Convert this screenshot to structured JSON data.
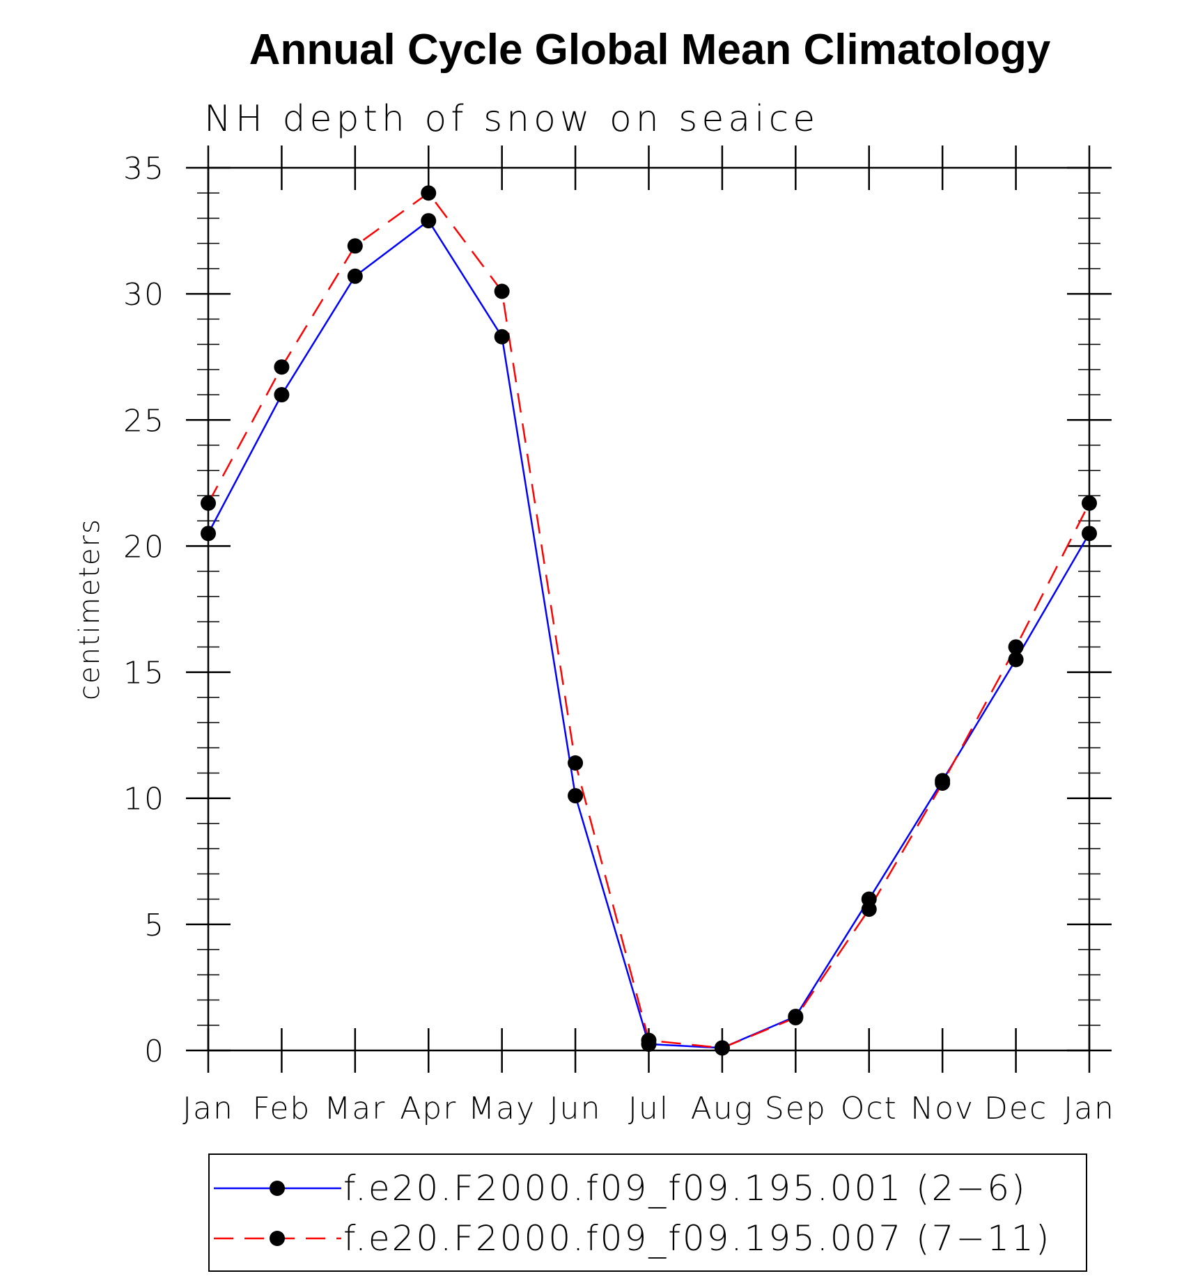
{
  "chart_data": {
    "type": "line",
    "title": "Annual Cycle Global Mean Climatology",
    "subtitle": "NH depth of snow on seaice",
    "xlabel": "",
    "ylabel": "centimeters",
    "categories": [
      "Jan",
      "Feb",
      "Mar",
      "Apr",
      "May",
      "Jun",
      "Jul",
      "Aug",
      "Sep",
      "Oct",
      "Nov",
      "Dec",
      "Jan"
    ],
    "ylim": [
      0,
      35
    ],
    "yticks": [
      "0",
      "5",
      "10",
      "15",
      "20",
      "25",
      "30",
      "35"
    ],
    "grid": false,
    "legend_position": "bottom",
    "series": [
      {
        "name": "f.e20.F2000.f09_f09.195.001 (2−6)",
        "color": "#0000ff",
        "dash": "solid",
        "marker": "filled-circle",
        "values": [
          20.5,
          26.0,
          30.7,
          32.9,
          28.3,
          10.1,
          0.25,
          0.1,
          1.35,
          6.0,
          10.7,
          15.5,
          20.5
        ]
      },
      {
        "name": "f.e20.F2000.f09_f09.195.007 (7−11)",
        "color": "#ff0000",
        "dash": "dashed",
        "marker": "filled-circle",
        "values": [
          21.7,
          27.1,
          31.9,
          34.0,
          30.1,
          11.4,
          0.4,
          0.1,
          1.3,
          5.6,
          10.6,
          16.0,
          21.7
        ]
      }
    ]
  }
}
